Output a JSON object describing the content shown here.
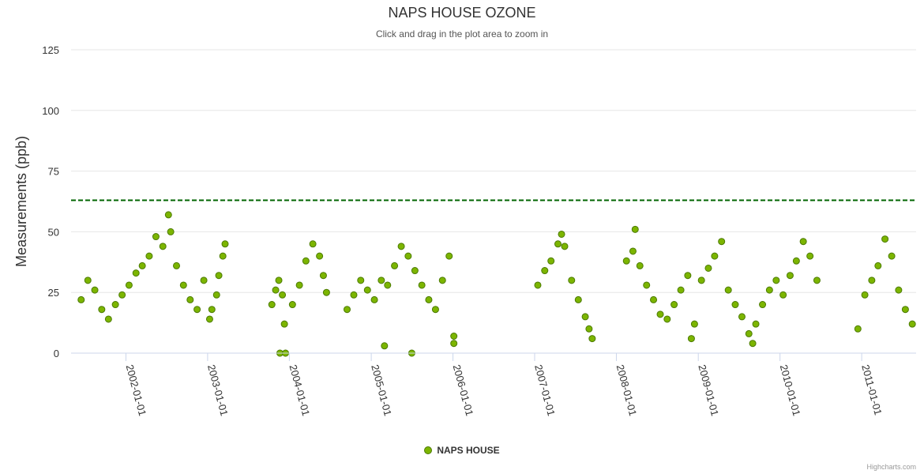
{
  "chart_data": {
    "type": "scatter",
    "title": "NAPS HOUSE OZONE",
    "subtitle": "Click and drag in the plot area to zoom in",
    "ylabel": "Measurements (ppb)",
    "xlabel": "",
    "ylim": [
      0,
      125
    ],
    "yticks": [
      0,
      25,
      50,
      75,
      100,
      125
    ],
    "xlim": [
      "2001-05-01",
      "2011-09-01"
    ],
    "xticks": [
      "2002-01-01",
      "2003-01-01",
      "2004-01-01",
      "2005-01-01",
      "2006-01-01",
      "2007-01-01",
      "2008-01-01",
      "2009-01-01",
      "2010-01-01",
      "2011-01-01"
    ],
    "grid": true,
    "legend_position": "bottom-center",
    "reference_line": {
      "value": 63,
      "style": "dashed",
      "color": "#006400"
    },
    "series": [
      {
        "name": "NAPS HOUSE",
        "color": "#7cb500",
        "points": [
          [
            "2001-06-15",
            22
          ],
          [
            "2001-07-15",
            30
          ],
          [
            "2001-08-15",
            26
          ],
          [
            "2001-09-15",
            18
          ],
          [
            "2001-10-15",
            14
          ],
          [
            "2001-11-15",
            20
          ],
          [
            "2001-12-15",
            24
          ],
          [
            "2002-01-15",
            28
          ],
          [
            "2002-02-15",
            33
          ],
          [
            "2002-03-15",
            36
          ],
          [
            "2002-04-15",
            40
          ],
          [
            "2002-05-15",
            48
          ],
          [
            "2002-06-15",
            44
          ],
          [
            "2002-07-10",
            57
          ],
          [
            "2002-07-20",
            50
          ],
          [
            "2002-08-15",
            36
          ],
          [
            "2002-09-15",
            28
          ],
          [
            "2002-10-15",
            22
          ],
          [
            "2002-11-15",
            18
          ],
          [
            "2002-12-15",
            30
          ],
          [
            "2003-01-10",
            14
          ],
          [
            "2003-01-20",
            18
          ],
          [
            "2003-02-10",
            24
          ],
          [
            "2003-02-20",
            32
          ],
          [
            "2003-03-10",
            40
          ],
          [
            "2003-03-20",
            45
          ],
          [
            "2003-10-15",
            20
          ],
          [
            "2003-11-01",
            26
          ],
          [
            "2003-11-15",
            30
          ],
          [
            "2003-12-01",
            24
          ],
          [
            "2003-12-10",
            12
          ],
          [
            "2003-11-20",
            0
          ],
          [
            "2003-12-15",
            0
          ],
          [
            "2004-01-15",
            20
          ],
          [
            "2004-02-15",
            28
          ],
          [
            "2004-03-15",
            38
          ],
          [
            "2004-04-15",
            45
          ],
          [
            "2004-05-15",
            40
          ],
          [
            "2004-06-01",
            32
          ],
          [
            "2004-06-15",
            25
          ],
          [
            "2004-09-15",
            18
          ],
          [
            "2004-10-15",
            24
          ],
          [
            "2004-11-15",
            30
          ],
          [
            "2004-12-15",
            26
          ],
          [
            "2005-01-15",
            22
          ],
          [
            "2005-02-15",
            30
          ],
          [
            "2005-03-15",
            28
          ],
          [
            "2005-04-15",
            36
          ],
          [
            "2005-05-15",
            44
          ],
          [
            "2005-06-15",
            40
          ],
          [
            "2005-07-15",
            34
          ],
          [
            "2005-03-01",
            3
          ],
          [
            "2005-07-01",
            0
          ],
          [
            "2005-08-15",
            28
          ],
          [
            "2005-09-15",
            22
          ],
          [
            "2005-10-15",
            18
          ],
          [
            "2005-11-15",
            30
          ],
          [
            "2005-12-15",
            40
          ],
          [
            "2006-01-05",
            4
          ],
          [
            "2006-01-05",
            7
          ],
          [
            "2007-01-15",
            28
          ],
          [
            "2007-02-15",
            34
          ],
          [
            "2007-03-15",
            38
          ],
          [
            "2007-04-15",
            45
          ],
          [
            "2007-05-01",
            49
          ],
          [
            "2007-05-15",
            44
          ],
          [
            "2007-06-15",
            30
          ],
          [
            "2007-07-15",
            22
          ],
          [
            "2007-08-15",
            15
          ],
          [
            "2007-09-01",
            10
          ],
          [
            "2007-09-15",
            6
          ],
          [
            "2008-02-15",
            38
          ],
          [
            "2008-03-15",
            42
          ],
          [
            "2008-03-25",
            51
          ],
          [
            "2008-04-15",
            36
          ],
          [
            "2008-05-15",
            28
          ],
          [
            "2008-06-15",
            22
          ],
          [
            "2008-07-15",
            16
          ],
          [
            "2008-08-15",
            14
          ],
          [
            "2008-09-15",
            20
          ],
          [
            "2008-10-15",
            26
          ],
          [
            "2008-11-15",
            32
          ],
          [
            "2008-12-15",
            12
          ],
          [
            "2008-12-01",
            6
          ],
          [
            "2009-01-15",
            30
          ],
          [
            "2009-02-15",
            35
          ],
          [
            "2009-03-15",
            40
          ],
          [
            "2009-04-15",
            46
          ],
          [
            "2009-05-15",
            26
          ],
          [
            "2009-06-15",
            20
          ],
          [
            "2009-07-15",
            15
          ],
          [
            "2009-08-15",
            8
          ],
          [
            "2009-09-01",
            4
          ],
          [
            "2009-09-15",
            12
          ],
          [
            "2009-10-15",
            20
          ],
          [
            "2009-11-15",
            26
          ],
          [
            "2009-12-15",
            30
          ],
          [
            "2010-01-15",
            24
          ],
          [
            "2010-02-15",
            32
          ],
          [
            "2010-03-15",
            38
          ],
          [
            "2010-04-15",
            46
          ],
          [
            "2010-05-15",
            40
          ],
          [
            "2010-06-15",
            30
          ],
          [
            "2010-12-15",
            10
          ],
          [
            "2011-01-15",
            24
          ],
          [
            "2011-02-15",
            30
          ],
          [
            "2011-03-15",
            36
          ],
          [
            "2011-04-15",
            47
          ],
          [
            "2011-05-15",
            40
          ],
          [
            "2011-06-15",
            26
          ],
          [
            "2011-07-15",
            18
          ],
          [
            "2011-08-15",
            12
          ]
        ]
      }
    ],
    "credits": "Highcharts.com"
  }
}
